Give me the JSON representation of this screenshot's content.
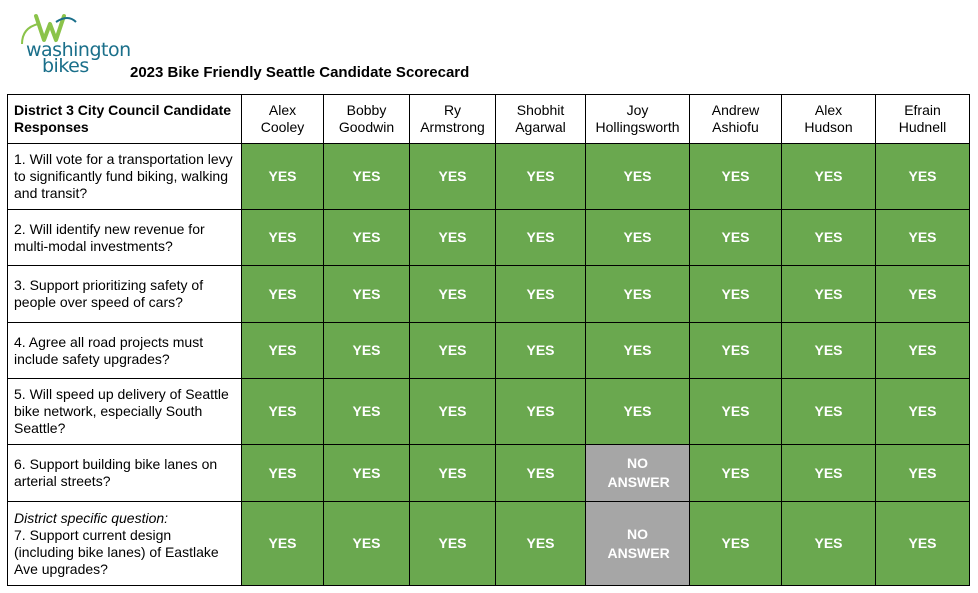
{
  "logo": {
    "line1": "washington",
    "line2": "bikes",
    "brand_color": "#1a6f8a",
    "accent_color": "#8bc34a"
  },
  "title": "2023 Bike Friendly Seattle Candidate Scorecard",
  "table": {
    "corner_label": "District 3 City Council Candidate Responses",
    "candidates": [
      {
        "first": "Alex",
        "last": "Cooley"
      },
      {
        "first": "Bobby",
        "last": "Goodwin"
      },
      {
        "first": "Ry",
        "last": "Armstrong"
      },
      {
        "first": "Shobhit",
        "last": "Agarwal"
      },
      {
        "first": "Joy",
        "last": "Hollingsworth"
      },
      {
        "first": "Andrew",
        "last": "Ashiofu"
      },
      {
        "first": "Alex",
        "last": "Hudson"
      },
      {
        "first": "Efrain",
        "last": "Hudnell"
      }
    ],
    "questions": [
      {
        "note": "",
        "text": "1. Will vote for a transportation levy to significantly fund biking, walking and transit?",
        "answers": [
          "YES",
          "YES",
          "YES",
          "YES",
          "YES",
          "YES",
          "YES",
          "YES"
        ]
      },
      {
        "note": "",
        "text": "2. Will identify new revenue for multi-modal investments?",
        "answers": [
          "YES",
          "YES",
          "YES",
          "YES",
          "YES",
          "YES",
          "YES",
          "YES"
        ]
      },
      {
        "note": "",
        "text": "3. Support prioritizing safety of people over speed of cars?",
        "answers": [
          "YES",
          "YES",
          "YES",
          "YES",
          "YES",
          "YES",
          "YES",
          "YES"
        ]
      },
      {
        "note": "",
        "text": "4. Agree all road projects must include safety upgrades?",
        "answers": [
          "YES",
          "YES",
          "YES",
          "YES",
          "YES",
          "YES",
          "YES",
          "YES"
        ]
      },
      {
        "note": "",
        "text": "5. Will speed up delivery of Seattle bike network, especially South Seattle?",
        "answers": [
          "YES",
          "YES",
          "YES",
          "YES",
          "YES",
          "YES",
          "YES",
          "YES"
        ]
      },
      {
        "note": "",
        "text": "6. Support building bike lanes on arterial streets?",
        "answers": [
          "YES",
          "YES",
          "YES",
          "YES",
          "NO ANSWER",
          "YES",
          "YES",
          "YES"
        ]
      },
      {
        "note": "District specific question:",
        "text": "7. Support current design (including bike lanes) of Eastlake Ave upgrades?",
        "answers": [
          "YES",
          "YES",
          "YES",
          "YES",
          "NO ANSWER",
          "YES",
          "YES",
          "YES"
        ]
      }
    ],
    "colors": {
      "yes": "#6aa84f",
      "no_answer": "#a6a6a6"
    }
  }
}
